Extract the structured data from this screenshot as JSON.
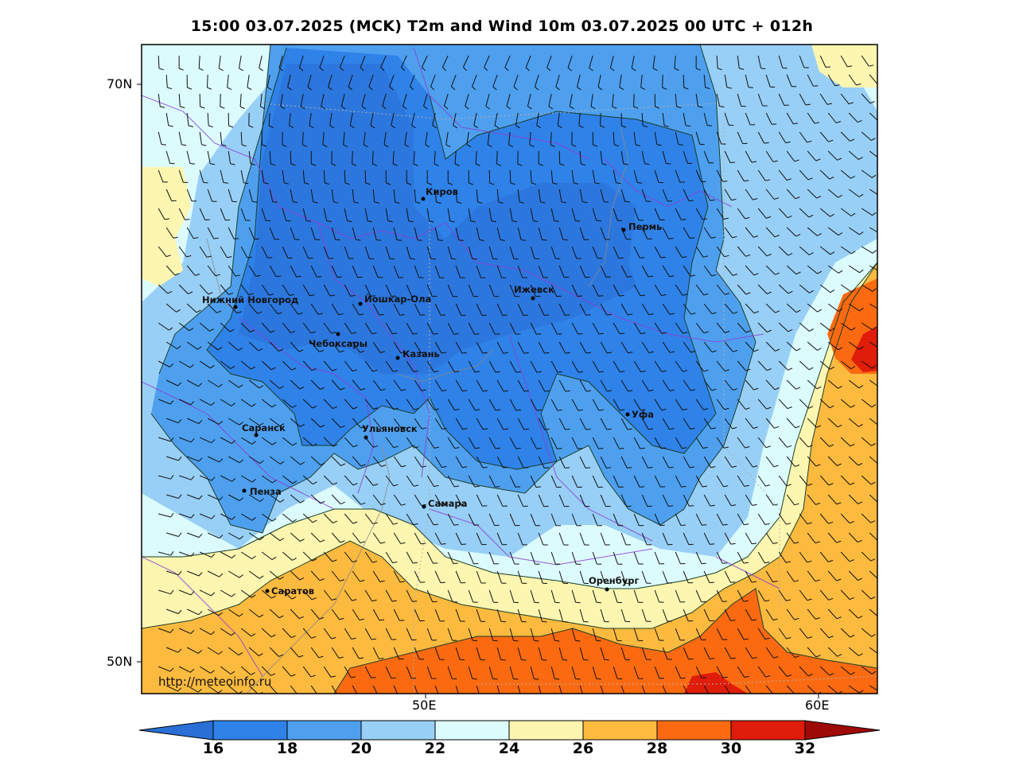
{
  "title": "15:00 03.07.2025 (MCK) T2m and Wind 10m 03.07.2025 00 UTC + 012h",
  "axes": {
    "lat_labels": [
      "70N",
      "50N"
    ],
    "lon_labels": [
      "50E",
      "60E"
    ]
  },
  "watermark": "http://meteoinfo.ru",
  "cities": [
    {
      "name": "Киров"
    },
    {
      "name": "Пермь"
    },
    {
      "name": "Нижний Новгород"
    },
    {
      "name": "Йошкар-Ола"
    },
    {
      "name": "Ижевск"
    },
    {
      "name": "Чебоксары"
    },
    {
      "name": "Казань"
    },
    {
      "name": "Уфа"
    },
    {
      "name": "Саранск"
    },
    {
      "name": "Ульяновск"
    },
    {
      "name": "Пенза"
    },
    {
      "name": "Самара"
    },
    {
      "name": "Оренбург"
    },
    {
      "name": "Саратов"
    }
  ],
  "colorbar": {
    "labels": [
      "16",
      "18",
      "20",
      "22",
      "24",
      "26",
      "28",
      "30",
      "32"
    ],
    "colors": [
      "#2a6fd6",
      "#2f82e8",
      "#4ea0ef",
      "#98cff6",
      "#dcfbfd",
      "#fdf6b0",
      "#fcba3f",
      "#fb6a10",
      "#e01c0a",
      "#9e0a05"
    ]
  }
}
